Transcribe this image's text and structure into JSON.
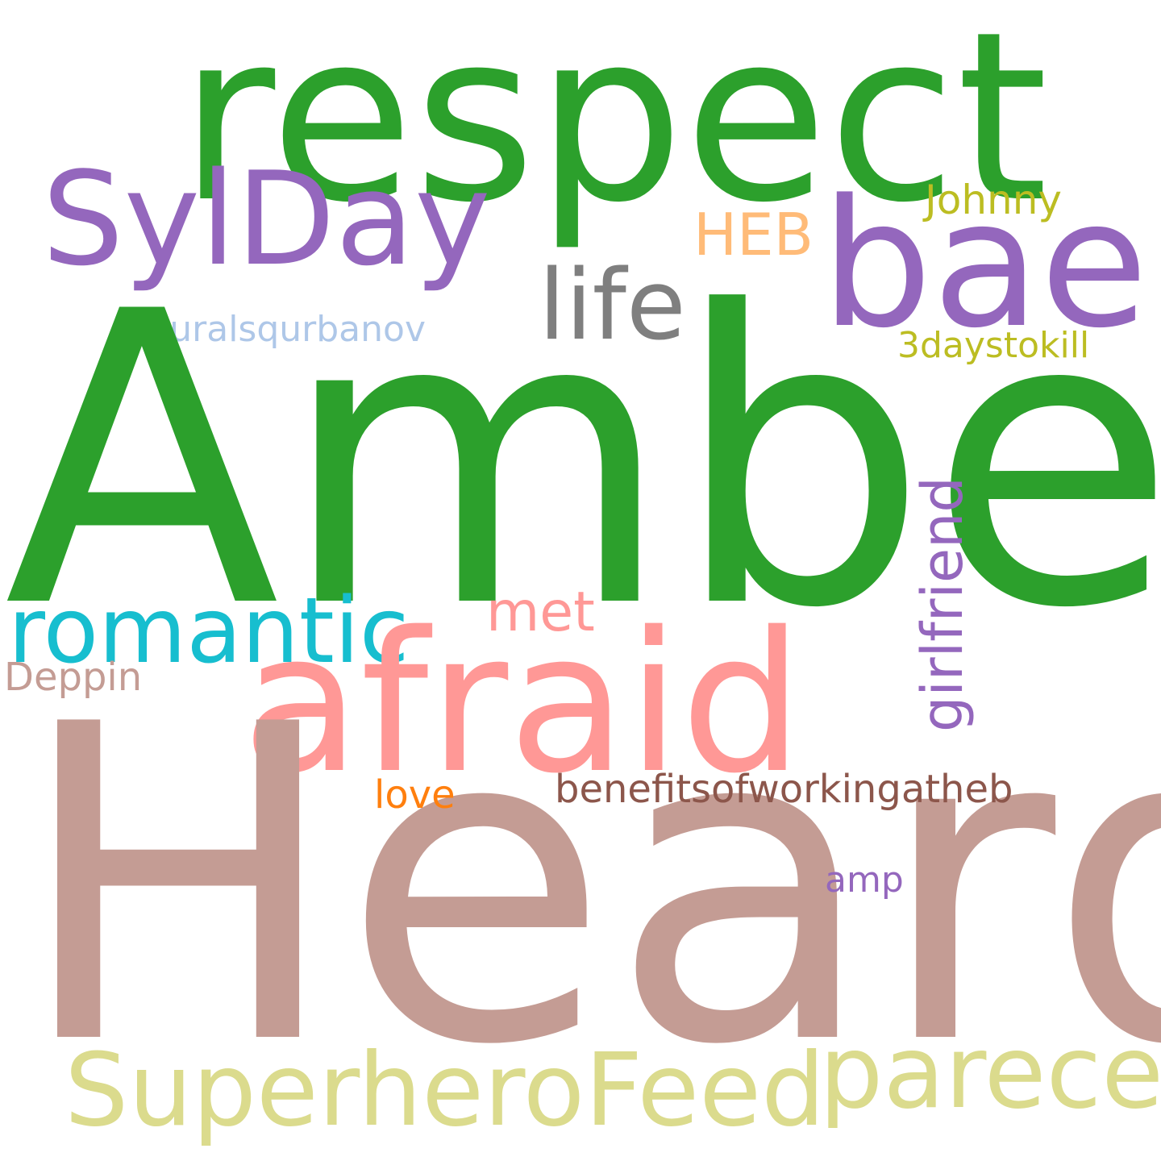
{
  "word_cloud": {
    "words": [
      {
        "text": "Amber",
        "color": "#2ca02c",
        "rank": 1
      },
      {
        "text": "Heard",
        "color": "#c49c94",
        "rank": 2
      },
      {
        "text": "respect",
        "color": "#2ca02c",
        "rank": 3
      },
      {
        "text": "afraid",
        "color": "#ff9896",
        "rank": 4
      },
      {
        "text": "bae",
        "color": "#9467bd",
        "rank": 5
      },
      {
        "text": "SylDay",
        "color": "#9467bd",
        "rank": 6
      },
      {
        "text": "life",
        "color": "#7f7f7f",
        "rank": 7
      },
      {
        "text": "romantic",
        "color": "#17becf",
        "rank": 8
      },
      {
        "text": "SuperheroFeed",
        "color": "#dbdb8d",
        "rank": 9
      },
      {
        "text": "parece",
        "color": "#dbdb8d",
        "rank": 10
      },
      {
        "text": "girlfriend",
        "color": "#9467bd",
        "rank": 11,
        "orientation": "vertical"
      },
      {
        "text": "HEB",
        "color": "#ffbb78",
        "rank": 12
      },
      {
        "text": "met",
        "color": "#ff9896",
        "rank": 13
      },
      {
        "text": "Johnny",
        "color": "#bcbd22",
        "rank": 14
      },
      {
        "text": "turalsqurbanov",
        "color": "#aec7e8",
        "rank": 15
      },
      {
        "text": "3daystokill",
        "color": "#bcbd22",
        "rank": 16
      },
      {
        "text": "Deppin",
        "color": "#c49c94",
        "rank": 17
      },
      {
        "text": "benefitsofworkingatheb",
        "color": "#8c564b",
        "rank": 18
      },
      {
        "text": "love",
        "color": "#ff7f0e",
        "rank": 19
      },
      {
        "text": "amp",
        "color": "#9467bd",
        "rank": 20
      }
    ]
  }
}
